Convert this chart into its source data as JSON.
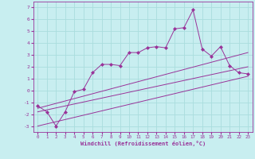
{
  "xlabel": "Windchill (Refroidissement éolien,°C)",
  "xlim": [
    -0.5,
    23.5
  ],
  "ylim": [
    -3.5,
    7.5
  ],
  "yticks": [
    -3,
    -2,
    -1,
    0,
    1,
    2,
    3,
    4,
    5,
    6,
    7
  ],
  "xticks": [
    0,
    1,
    2,
    3,
    4,
    5,
    6,
    7,
    8,
    9,
    10,
    11,
    12,
    13,
    14,
    15,
    16,
    17,
    18,
    19,
    20,
    21,
    22,
    23
  ],
  "bg_color": "#c8eef0",
  "line_color": "#993399",
  "grid_color": "#aadddd",
  "line1_x": [
    0,
    1,
    2,
    3,
    4,
    5,
    6,
    7,
    8,
    9,
    10,
    11,
    12,
    13,
    14,
    15,
    16,
    17,
    18,
    19,
    20,
    21,
    22,
    23
  ],
  "line1_y": [
    -1.3,
    -1.8,
    -3.0,
    -1.8,
    -0.1,
    0.1,
    1.5,
    2.2,
    2.2,
    2.1,
    3.2,
    3.2,
    3.6,
    3.7,
    3.6,
    5.2,
    5.3,
    6.8,
    3.5,
    2.9,
    3.7,
    2.1,
    1.5,
    1.4
  ],
  "line2_x": [
    0,
    23
  ],
  "line2_y": [
    -1.5,
    3.2
  ],
  "line3_x": [
    0,
    23
  ],
  "line3_y": [
    -1.8,
    2.0
  ],
  "line4_x": [
    0,
    23
  ],
  "line4_y": [
    -3.0,
    1.2
  ]
}
